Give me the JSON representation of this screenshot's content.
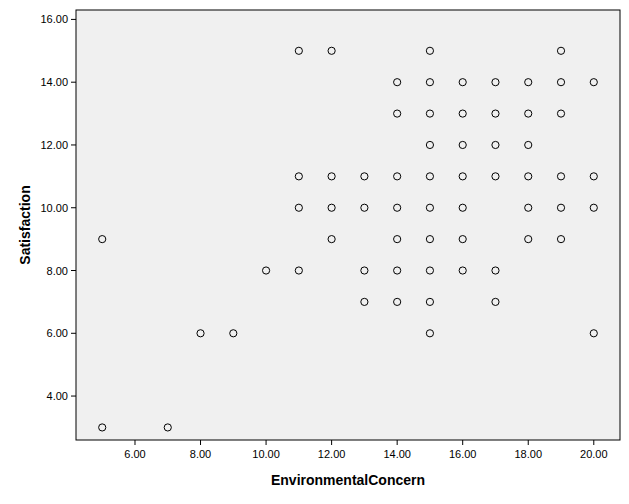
{
  "chart_data": {
    "type": "scatter",
    "x_label": "EnvironmentalConcern",
    "y_label": "Satisfaction",
    "x": [
      11,
      12,
      15,
      19,
      14,
      15,
      16,
      17,
      18,
      19,
      20,
      14,
      15,
      16,
      17,
      18,
      19,
      15,
      16,
      17,
      18,
      11,
      12,
      13,
      14,
      15,
      16,
      17,
      18,
      19,
      20,
      11,
      12,
      13,
      14,
      15,
      16,
      18,
      19,
      20,
      5,
      12,
      14,
      15,
      16,
      18,
      19,
      10,
      11,
      13,
      14,
      15,
      16,
      17,
      13,
      14,
      15,
      17,
      8,
      9,
      15,
      20,
      5,
      7
    ],
    "values": [
      15,
      15,
      15,
      15,
      14,
      14,
      14,
      14,
      14,
      14,
      14,
      13,
      13,
      13,
      13,
      13,
      13,
      12,
      12,
      12,
      12,
      11,
      11,
      11,
      11,
      11,
      11,
      11,
      11,
      11,
      11,
      10,
      10,
      10,
      10,
      10,
      10,
      10,
      10,
      10,
      9,
      9,
      9,
      9,
      9,
      9,
      9,
      8,
      8,
      8,
      8,
      8,
      8,
      8,
      7,
      7,
      7,
      7,
      6,
      6,
      6,
      6,
      3,
      3
    ],
    "color": "#000000",
    "marker": "circle-open",
    "xlim": [
      4.2,
      20.8
    ],
    "ylim": [
      2.6,
      16.3
    ],
    "xticks": [
      {
        "value": 6,
        "label": "6.00"
      },
      {
        "value": 8,
        "label": "8.00"
      },
      {
        "value": 10,
        "label": "10.00"
      },
      {
        "value": 12,
        "label": "12.00"
      },
      {
        "value": 14,
        "label": "14.00"
      },
      {
        "value": 16,
        "label": "16.00"
      },
      {
        "value": 18,
        "label": "18.00"
      },
      {
        "value": 20,
        "label": "20.00"
      }
    ],
    "yticks": [
      {
        "value": 4,
        "label": "4.00"
      },
      {
        "value": 6,
        "label": "6.00"
      },
      {
        "value": 8,
        "label": "8.00"
      },
      {
        "value": 10,
        "label": "10.00"
      },
      {
        "value": 12,
        "label": "12.00"
      },
      {
        "value": 14,
        "label": "14.00"
      },
      {
        "value": 16,
        "label": "16.00"
      }
    ],
    "grid": false
  }
}
